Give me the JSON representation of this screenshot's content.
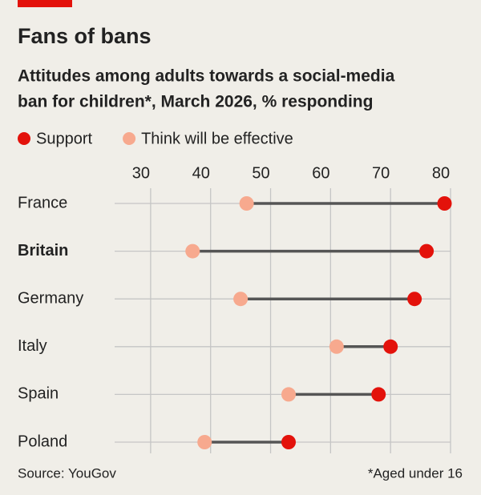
{
  "chart_data": {
    "type": "dumbbell",
    "title": "Fans of bans",
    "subtitle": [
      "Attitudes among adults towards a social-media",
      "ban for children*, March 2026, % responding"
    ],
    "categories": [
      "France",
      "Britain",
      "Germany",
      "Italy",
      "Spain",
      "Poland"
    ],
    "bold_categories": [
      false,
      true,
      false,
      false,
      false,
      false
    ],
    "series": [
      {
        "name": "Support",
        "color": "#e3120b",
        "values": [
          79,
          76,
          74,
          70,
          68,
          53
        ]
      },
      {
        "name": "Think will be effective",
        "color": "#f7a98e",
        "values": [
          46,
          37,
          45,
          61,
          53,
          39
        ]
      }
    ],
    "xlim": [
      24,
      80
    ],
    "xticks": [
      30,
      40,
      50,
      60,
      70,
      80
    ],
    "grid": true,
    "source": "Source: YouGov",
    "footnote": "*Aged under 16"
  }
}
